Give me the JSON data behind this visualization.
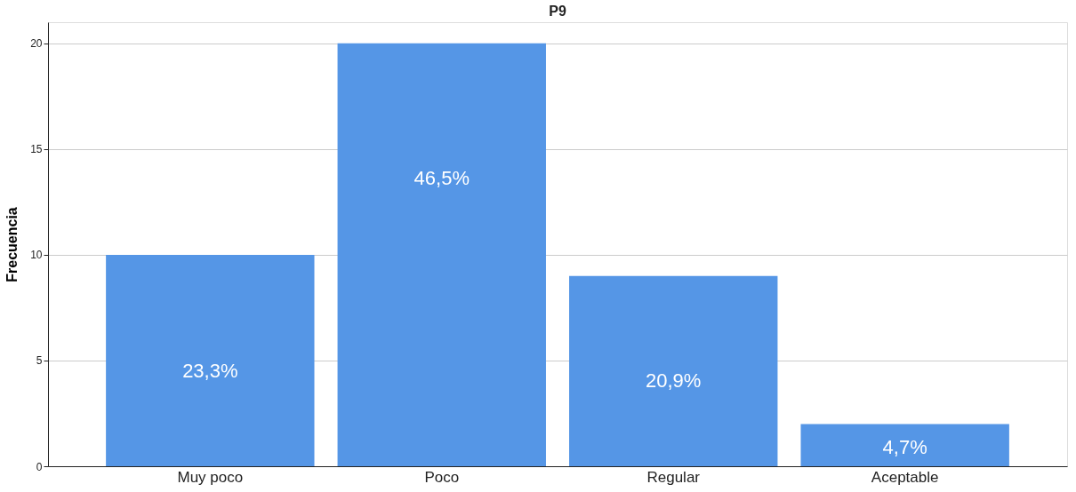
{
  "chart_data": {
    "type": "bar",
    "title": "P9",
    "ylabel": "Frecuencia",
    "categories": [
      "Muy poco",
      "Poco",
      "Regular",
      "Aceptable"
    ],
    "values": [
      10,
      20,
      9,
      2
    ],
    "annotations": [
      "23,3%",
      "46,5%",
      "20,9%",
      "4,7%"
    ],
    "legend": false,
    "color": "#5596e6",
    "ylim": [
      0,
      21
    ],
    "yticks": [
      0,
      5,
      10,
      15,
      20
    ],
    "grid": "y"
  }
}
